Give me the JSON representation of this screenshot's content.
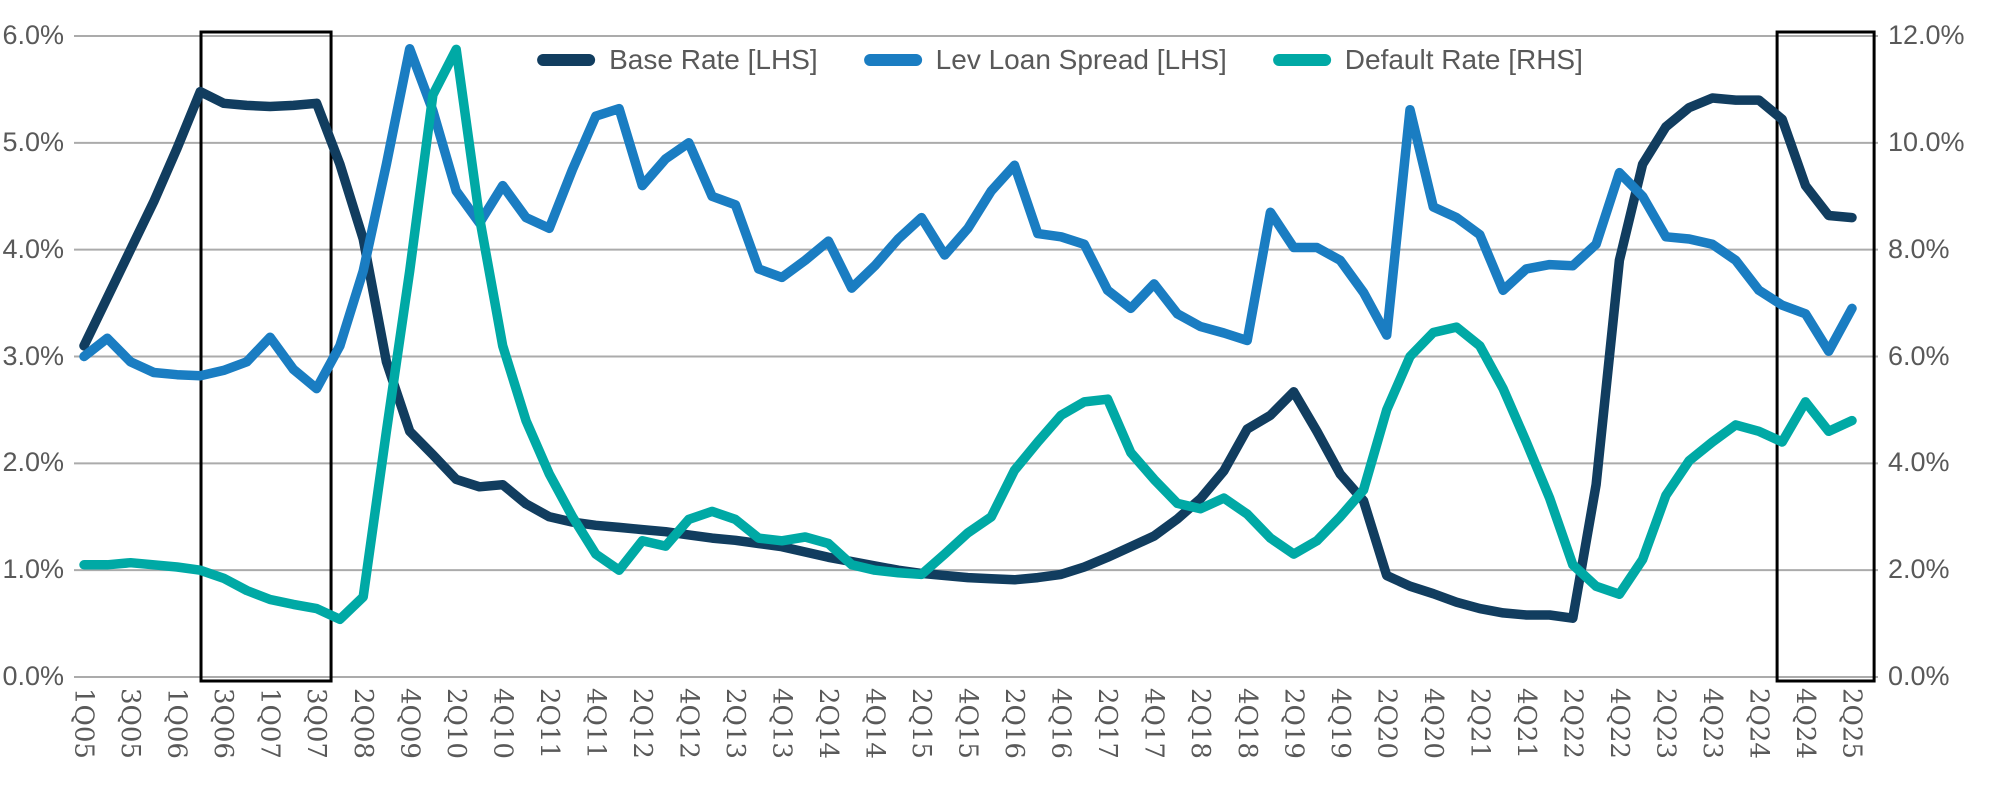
{
  "chart_data": {
    "type": "line",
    "title": "",
    "grid": "horizontal",
    "gridline_color": "#ABABAB",
    "background_color": "#FFFFFF",
    "text_color": "#595959",
    "legend_position": "top-center",
    "legend": [
      {
        "label": "Base Rate [LHS]",
        "color": "#113D5F",
        "axis": "left"
      },
      {
        "label": "Lev Loan Spread [LHS]",
        "color": "#1A7DC2",
        "axis": "left"
      },
      {
        "label": "Default Rate [RHS]",
        "color": "#00A9A5",
        "axis": "right"
      }
    ],
    "y_axis_left": {
      "min": 0,
      "max": 6,
      "tick_labels_top_to_bottom": [
        "6.0%",
        "5.0%",
        "4.0%",
        "3.0%",
        "2.0%",
        "1.0%",
        "0.0%"
      ]
    },
    "y_axis_right": {
      "min": 0,
      "max": 12,
      "tick_labels_top_to_bottom": [
        "12.0%",
        "10.0%",
        "8.0%",
        "6.0%",
        "4.0%",
        "2.0%",
        "0.0%"
      ]
    },
    "x_axis": {
      "tick_labels": [
        "1Q05",
        "3Q05",
        "1Q06",
        "3Q06",
        "1Q07",
        "3Q07",
        "2Q08",
        "4Q09",
        "2Q10",
        "4Q10",
        "2Q11",
        "4Q11",
        "2Q12",
        "4Q12",
        "2Q13",
        "4Q13",
        "2Q14",
        "4Q14",
        "2Q15",
        "4Q15",
        "2Q16",
        "4Q16",
        "2Q17",
        "4Q17",
        "2Q18",
        "4Q18",
        "2Q19",
        "4Q19",
        "2Q20",
        "4Q20",
        "2Q21",
        "4Q21",
        "2Q22",
        "4Q22",
        "2Q23",
        "4Q23",
        "2Q24",
        "4Q24",
        "2Q25"
      ],
      "points_per_tick_interval": 2,
      "note": "Series have one unlabeled data point between each pair of adjacent tick labels; ticks fall on even point indices."
    },
    "series": [
      {
        "name": "Base Rate [LHS]",
        "axis": "left",
        "color": "#113D5F",
        "values": [
          3.1,
          3.55,
          4.0,
          4.45,
          4.95,
          5.48,
          5.37,
          5.35,
          5.34,
          5.35,
          5.37,
          4.8,
          4.1,
          2.95,
          2.3,
          2.08,
          1.85,
          1.78,
          1.8,
          1.62,
          1.5,
          1.45,
          1.42,
          1.4,
          1.38,
          1.36,
          1.33,
          1.3,
          1.28,
          1.25,
          1.22,
          1.17,
          1.12,
          1.08,
          1.04,
          1.0,
          0.97,
          0.95,
          0.93,
          0.92,
          0.91,
          0.93,
          0.96,
          1.03,
          1.12,
          1.22,
          1.32,
          1.48,
          1.67,
          1.93,
          2.32,
          2.45,
          2.67,
          2.3,
          1.9,
          1.65,
          0.95,
          0.85,
          0.78,
          0.7,
          0.64,
          0.6,
          0.58,
          0.58,
          0.55,
          1.8,
          3.9,
          4.8,
          5.15,
          5.33,
          5.42,
          5.4,
          5.4,
          5.22,
          4.6,
          4.32,
          4.3
        ]
      },
      {
        "name": "Lev Loan Spread [LHS]",
        "axis": "left",
        "color": "#1A7DC2",
        "values": [
          3.0,
          3.17,
          2.95,
          2.85,
          2.83,
          2.82,
          2.87,
          2.95,
          3.18,
          2.88,
          2.7,
          3.1,
          3.8,
          4.8,
          5.88,
          5.3,
          4.55,
          4.25,
          4.6,
          4.3,
          4.2,
          4.75,
          5.25,
          5.32,
          4.6,
          4.85,
          5.0,
          4.5,
          4.42,
          3.82,
          3.74,
          3.9,
          4.08,
          3.64,
          3.85,
          4.1,
          4.3,
          3.95,
          4.2,
          4.55,
          4.79,
          4.15,
          4.12,
          4.05,
          3.62,
          3.45,
          3.68,
          3.4,
          3.28,
          3.22,
          3.15,
          4.35,
          4.02,
          4.02,
          3.9,
          3.6,
          3.2,
          5.31,
          4.4,
          4.3,
          4.14,
          3.62,
          3.82,
          3.86,
          3.85,
          4.05,
          4.72,
          4.5,
          4.12,
          4.1,
          4.05,
          3.9,
          3.62,
          3.48,
          3.4,
          3.05,
          3.45
        ]
      },
      {
        "name": "Default Rate [RHS]",
        "axis": "right",
        "color": "#00A9A5",
        "values": [
          2.1,
          2.1,
          2.14,
          2.1,
          2.06,
          2.0,
          1.85,
          1.62,
          1.45,
          1.36,
          1.28,
          1.08,
          1.5,
          4.6,
          7.6,
          10.9,
          11.75,
          8.6,
          6.2,
          4.8,
          3.8,
          3.0,
          2.3,
          2.0,
          2.55,
          2.45,
          2.95,
          3.1,
          2.95,
          2.6,
          2.55,
          2.62,
          2.5,
          2.1,
          2.0,
          1.95,
          1.92,
          2.3,
          2.7,
          3.0,
          3.87,
          4.4,
          4.9,
          5.15,
          5.2,
          4.2,
          3.7,
          3.25,
          3.15,
          3.35,
          3.05,
          2.6,
          2.3,
          2.55,
          3.0,
          3.5,
          5.0,
          6.0,
          6.45,
          6.55,
          6.2,
          5.4,
          4.4,
          3.35,
          2.1,
          1.7,
          1.55,
          2.2,
          3.4,
          4.05,
          4.4,
          4.72,
          4.6,
          4.4,
          5.15,
          4.6,
          4.8
        ]
      }
    ],
    "highlight_boxes": [
      {
        "from_point_index": 5.03,
        "to_point_index": 10.62,
        "border_color": "#000000",
        "approx_period": "2Q06-4Q07"
      },
      {
        "from_point_index": 72.78,
        "to_point_index": 76.95,
        "border_color": "#000000",
        "approx_period": "3Q24-2Q25"
      }
    ]
  }
}
